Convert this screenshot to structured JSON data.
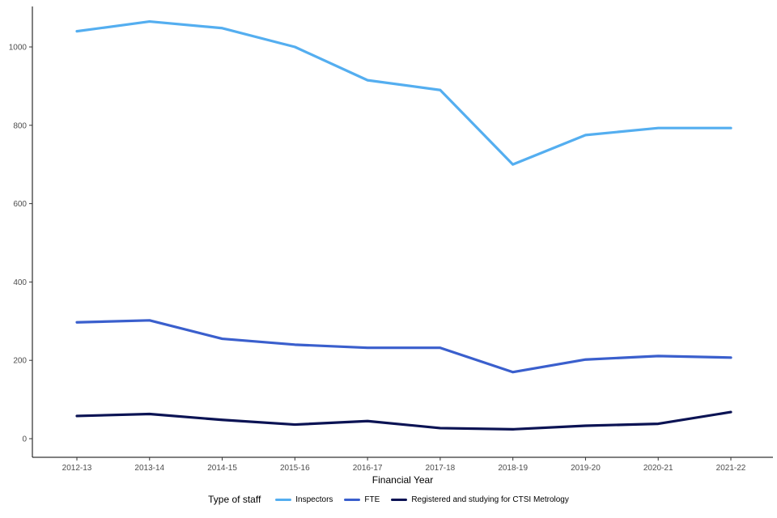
{
  "chart_data": {
    "type": "line",
    "title": "",
    "xlabel": "Financial Year",
    "ylabel": "",
    "legend_title": "Type of staff",
    "legend_position": "bottom",
    "grid": false,
    "ylim": [
      0,
      1100
    ],
    "yticks": [
      0,
      200,
      400,
      600,
      800,
      1000
    ],
    "categories": [
      "2012-13",
      "2013-14",
      "2014-15",
      "2015-16",
      "2016-17",
      "2017-18",
      "2018-19",
      "2019-20",
      "2020-21",
      "2021-22"
    ],
    "series": [
      {
        "name": "Inspectors",
        "color": "#54AEF0",
        "values": [
          1040,
          1065,
          1048,
          1000,
          915,
          890,
          700,
          775,
          793,
          793
        ]
      },
      {
        "name": "FTE",
        "color": "#3A5FCD",
        "values": [
          297,
          302,
          255,
          240,
          232,
          232,
          170,
          202,
          211,
          207
        ]
      },
      {
        "name": "Registered and studying for CTSI Metrology",
        "color": "#0B1354",
        "values": [
          58,
          63,
          48,
          36,
          45,
          27,
          24,
          33,
          38,
          68
        ]
      }
    ]
  }
}
